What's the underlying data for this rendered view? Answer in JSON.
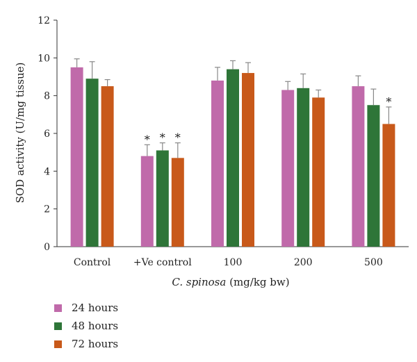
{
  "chart_data": {
    "type": "bar",
    "categories": [
      "Control",
      "+Ve control",
      "100",
      "200",
      "500"
    ],
    "series": [
      {
        "name": "24 hours",
        "color": "#c06aaa",
        "values": [
          9.5,
          4.8,
          8.8,
          8.3,
          8.5
        ],
        "errors": [
          0.45,
          0.6,
          0.7,
          0.45,
          0.55
        ],
        "significant": [
          false,
          true,
          false,
          false,
          false
        ]
      },
      {
        "name": "48 hours",
        "color": "#2e7538",
        "values": [
          8.9,
          5.1,
          9.4,
          8.4,
          7.5
        ],
        "errors": [
          0.9,
          0.4,
          0.45,
          0.75,
          0.85
        ],
        "significant": [
          false,
          true,
          false,
          false,
          false
        ]
      },
      {
        "name": "72 hours",
        "color": "#c8591a",
        "values": [
          8.5,
          4.7,
          9.2,
          7.9,
          6.5
        ],
        "errors": [
          0.35,
          0.8,
          0.55,
          0.4,
          0.9
        ],
        "significant": [
          false,
          true,
          false,
          false,
          true
        ]
      }
    ],
    "yticks": [
      0,
      2,
      4,
      6,
      8,
      10,
      12
    ],
    "ylim": [
      0,
      12
    ],
    "ylabel": "SOD activity (U/mg tissue)",
    "xlabel_italic": "C. spinosa",
    "xlabel_rest": " (mg/kg bw)",
    "significance_marker": "*",
    "grid": false,
    "legend_position": "bottom-left"
  }
}
